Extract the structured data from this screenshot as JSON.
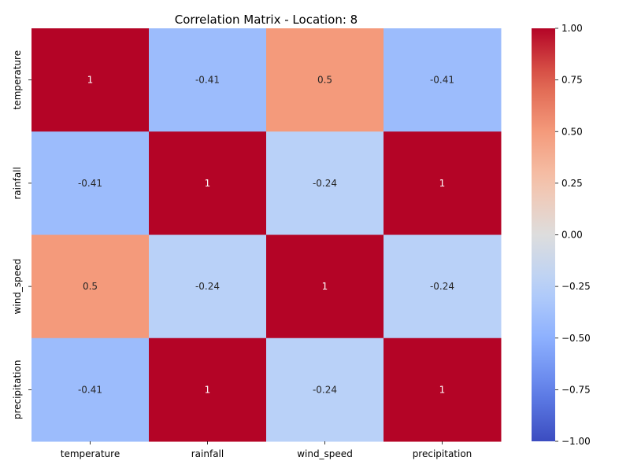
{
  "chart_data": {
    "type": "heatmap",
    "title": "Correlation Matrix - Location: 8",
    "x_labels": [
      "temperature",
      "rainfall",
      "wind_speed",
      "precipitation"
    ],
    "y_labels": [
      "temperature",
      "rainfall",
      "wind_speed",
      "precipitation"
    ],
    "values": [
      [
        1,
        -0.41,
        0.5,
        -0.41
      ],
      [
        -0.41,
        1,
        -0.24,
        1
      ],
      [
        0.5,
        -0.24,
        1,
        -0.24
      ],
      [
        -0.41,
        1,
        -0.24,
        1
      ]
    ],
    "annotations": [
      [
        "1",
        "-0.41",
        "0.5",
        "-0.41"
      ],
      [
        "-0.41",
        "1",
        "-0.24",
        "1"
      ],
      [
        "0.5",
        "-0.24",
        "1",
        "-0.24"
      ],
      [
        "-0.41",
        "1",
        "-0.24",
        "1"
      ]
    ],
    "colormap": "coolwarm",
    "vmin": -1.0,
    "vmax": 1.0,
    "colorbar_ticks": [
      1.0,
      0.75,
      0.5,
      0.25,
      0.0,
      -0.25,
      -0.5,
      -0.75,
      -1.0
    ],
    "colorbar_tick_labels": [
      "1.00",
      "0.75",
      "0.50",
      "0.25",
      "0.00",
      "−0.25",
      "−0.50",
      "−0.75",
      "−1.00"
    ],
    "legend_position": "right"
  }
}
